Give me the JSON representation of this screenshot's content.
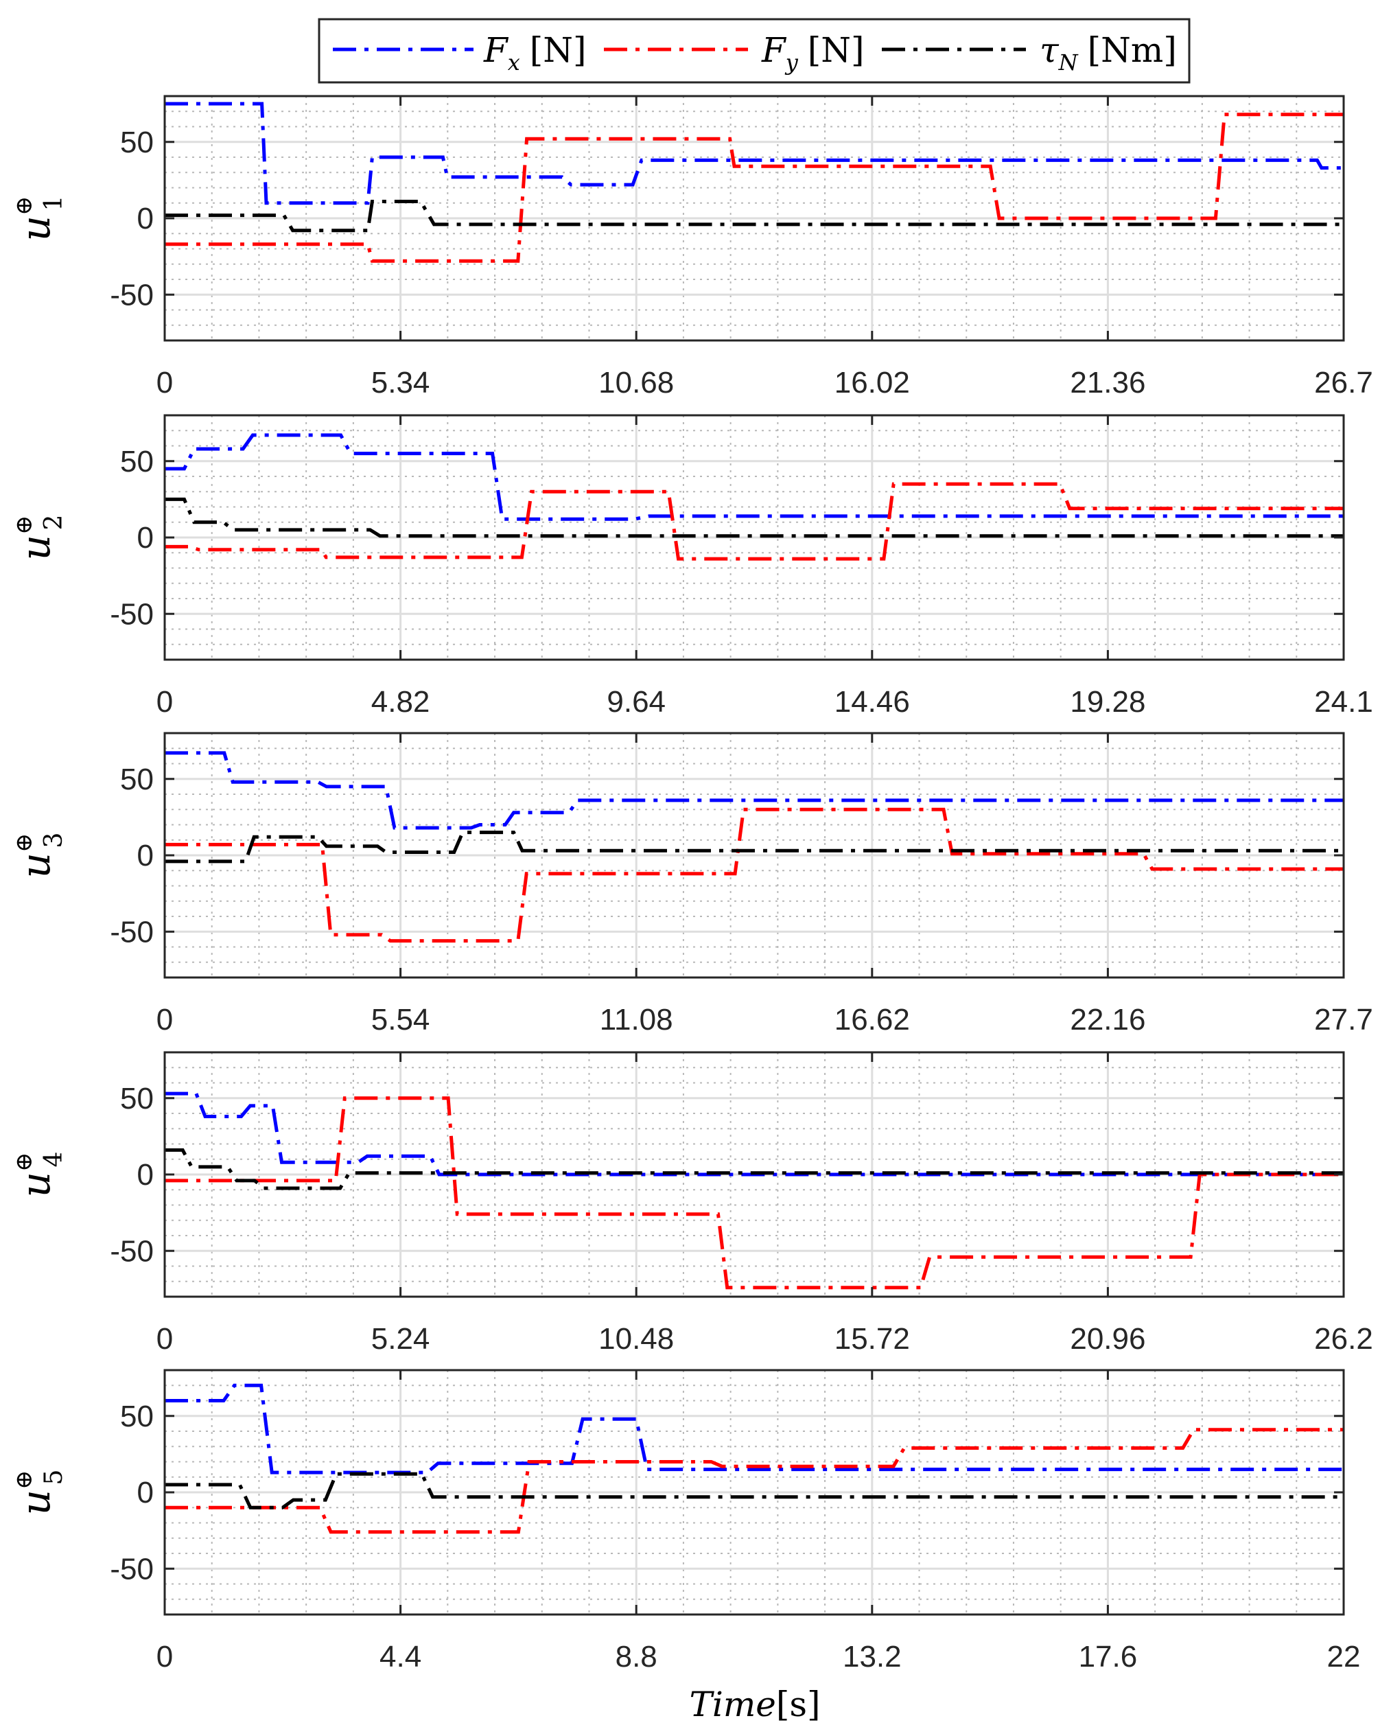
{
  "legend": {
    "entries": [
      {
        "key": "fx",
        "symbol": "F",
        "sub": "x",
        "unit": "[N]",
        "color": "#0000ff"
      },
      {
        "key": "fy",
        "symbol": "F",
        "sub": "y",
        "unit": "[N]",
        "color": "#ff0000"
      },
      {
        "key": "tau",
        "symbol": "τ",
        "sub": "N",
        "unit": "[Nm]",
        "color": "#000000"
      }
    ]
  },
  "xlabel": {
    "italic": "Time",
    "unit": "[s]"
  },
  "chart_data": [
    {
      "type": "line",
      "ylabel": {
        "main": "u",
        "sub": "1",
        "sup": "⊕"
      },
      "xlim": [
        0,
        26.7
      ],
      "ylim": [
        -80,
        80
      ],
      "xticks": [
        0,
        5.34,
        10.68,
        16.02,
        21.36,
        26.7
      ],
      "xticklabels": [
        "0",
        "5.34",
        "10.68",
        "16.02",
        "21.36",
        "26.7"
      ],
      "yticks": [
        50,
        0,
        -50
      ],
      "yticklabels": [
        "50",
        "0",
        "-50"
      ],
      "grid": true,
      "series": [
        {
          "key": "fx",
          "x": [
            0,
            2.2,
            2.3,
            4.6,
            4.7,
            6.3,
            6.4,
            9.0,
            9.2,
            10.6,
            10.8,
            26.1,
            26.2,
            26.7
          ],
          "y": [
            75,
            75,
            10,
            10,
            40,
            40,
            27,
            27,
            22,
            22,
            38,
            38,
            33,
            33
          ]
        },
        {
          "key": "fy",
          "x": [
            0,
            4.6,
            4.7,
            8.0,
            8.2,
            12.8,
            12.9,
            18.7,
            18.9,
            23.8,
            24.0,
            26.7
          ],
          "y": [
            -17,
            -17,
            -28,
            -28,
            52,
            52,
            34,
            34,
            0,
            0,
            68,
            68
          ]
        },
        {
          "key": "tau",
          "x": [
            0,
            2.7,
            2.9,
            4.6,
            4.7,
            5.8,
            6.1,
            26.7
          ],
          "y": [
            2,
            2,
            -8,
            -8,
            11,
            11,
            -4,
            -4
          ]
        }
      ]
    },
    {
      "type": "line",
      "ylabel": {
        "main": "u",
        "sub": "2",
        "sup": "⊕"
      },
      "xlim": [
        0,
        24.1
      ],
      "ylim": [
        -80,
        80
      ],
      "xticks": [
        0,
        4.82,
        9.64,
        14.46,
        19.28,
        24.1
      ],
      "xticklabels": [
        "0",
        "4.82",
        "9.64",
        "14.46",
        "19.28",
        "24.1"
      ],
      "yticks": [
        50,
        0,
        -50
      ],
      "yticklabels": [
        "50",
        "0",
        "-50"
      ],
      "grid": true,
      "series": [
        {
          "key": "fx",
          "x": [
            0,
            0.4,
            0.6,
            1.6,
            1.8,
            3.6,
            3.8,
            6.7,
            6.9,
            9.6,
            9.9,
            24.1
          ],
          "y": [
            45,
            45,
            58,
            58,
            67,
            67,
            55,
            55,
            12,
            12,
            14,
            14
          ]
        },
        {
          "key": "fy",
          "x": [
            0,
            0.5,
            0.7,
            3.2,
            3.3,
            7.3,
            7.5,
            10.3,
            10.5,
            14.7,
            14.9,
            18.3,
            18.5,
            24.1
          ],
          "y": [
            -6,
            -6,
            -8,
            -8,
            -13,
            -13,
            30,
            30,
            -14,
            -14,
            35,
            35,
            19,
            19
          ]
        },
        {
          "key": "tau",
          "x": [
            0,
            0.4,
            0.6,
            1.2,
            1.4,
            4.2,
            4.4,
            24.1
          ],
          "y": [
            25,
            25,
            10,
            10,
            5,
            5,
            1,
            1
          ]
        }
      ]
    },
    {
      "type": "line",
      "ylabel": {
        "main": "u",
        "sub": "3",
        "sup": "⊕"
      },
      "xlim": [
        0,
        27.7
      ],
      "ylim": [
        -80,
        80
      ],
      "xticks": [
        0,
        5.54,
        11.08,
        16.62,
        22.16,
        27.7
      ],
      "xticklabels": [
        "0",
        "5.54",
        "11.08",
        "16.62",
        "22.16",
        "27.7"
      ],
      "yticks": [
        50,
        0,
        -50
      ],
      "yticklabels": [
        "50",
        "0",
        "-50"
      ],
      "grid": true,
      "series": [
        {
          "key": "fx",
          "x": [
            0,
            1.4,
            1.6,
            3.6,
            3.8,
            5.2,
            5.4,
            7.2,
            7.4,
            8.0,
            8.2,
            9.5,
            9.7,
            27.7
          ],
          "y": [
            67,
            67,
            48,
            48,
            45,
            45,
            18,
            18,
            20,
            20,
            28,
            28,
            36,
            36
          ]
        },
        {
          "key": "fy",
          "x": [
            0,
            3.7,
            3.9,
            5.1,
            5.3,
            8.3,
            8.5,
            13.4,
            13.6,
            18.3,
            18.5,
            23.0,
            23.2,
            27.7
          ],
          "y": [
            7,
            7,
            -52,
            -52,
            -56,
            -56,
            -12,
            -12,
            30,
            30,
            1,
            1,
            -9,
            -9
          ]
        },
        {
          "key": "tau",
          "x": [
            0,
            1.9,
            2.1,
            3.6,
            3.8,
            5.0,
            5.2,
            6.8,
            7.0,
            8.2,
            8.4,
            27.7
          ],
          "y": [
            -4,
            -4,
            12,
            12,
            6,
            6,
            2,
            2,
            15,
            15,
            3,
            3
          ]
        }
      ]
    },
    {
      "type": "line",
      "ylabel": {
        "main": "u",
        "sub": "4",
        "sup": "⊕"
      },
      "xlim": [
        0,
        26.2
      ],
      "ylim": [
        -80,
        80
      ],
      "xticks": [
        0,
        5.24,
        10.48,
        15.72,
        20.96,
        26.2
      ],
      "xticklabels": [
        "0",
        "5.24",
        "10.48",
        "15.72",
        "20.96",
        "26.2"
      ],
      "yticks": [
        50,
        0,
        -50
      ],
      "yticklabels": [
        "50",
        "0",
        "-50"
      ],
      "grid": true,
      "series": [
        {
          "key": "fx",
          "x": [
            0,
            0.7,
            0.9,
            1.7,
            1.9,
            2.4,
            2.6,
            4.3,
            4.5,
            5.9,
            6.1,
            26.2
          ],
          "y": [
            53,
            53,
            38,
            38,
            45,
            45,
            8,
            8,
            12,
            12,
            0,
            0
          ]
        },
        {
          "key": "fy",
          "x": [
            0,
            3.8,
            4.0,
            6.3,
            6.5,
            12.3,
            12.5,
            16.8,
            17.0,
            22.8,
            23.0,
            26.2
          ],
          "y": [
            -4,
            -4,
            50,
            50,
            -26,
            -26,
            -74,
            -74,
            -54,
            -54,
            0,
            0
          ]
        },
        {
          "key": "tau",
          "x": [
            0,
            0.4,
            0.6,
            1.4,
            1.6,
            2.0,
            2.2,
            3.9,
            4.1,
            26.2
          ],
          "y": [
            16,
            16,
            5,
            5,
            -4,
            -4,
            -9,
            -9,
            1,
            1
          ]
        }
      ]
    },
    {
      "type": "line",
      "ylabel": {
        "main": "u",
        "sub": "5",
        "sup": "⊕"
      },
      "xlim": [
        0,
        22
      ],
      "ylim": [
        -80,
        80
      ],
      "xticks": [
        0,
        4.4,
        8.8,
        13.2,
        17.6,
        22
      ],
      "xticklabels": [
        "0",
        "4.4",
        "8.8",
        "13.2",
        "17.6",
        "22"
      ],
      "yticks": [
        50,
        0,
        -50
      ],
      "yticklabels": [
        "50",
        "0",
        "-50"
      ],
      "grid": true,
      "series": [
        {
          "key": "fx",
          "x": [
            0,
            1.1,
            1.3,
            1.8,
            2.0,
            4.9,
            5.1,
            7.6,
            7.8,
            8.8,
            9.0,
            22
          ],
          "y": [
            60,
            60,
            70,
            70,
            13,
            13,
            19,
            19,
            48,
            48,
            15,
            15
          ]
        },
        {
          "key": "fy",
          "x": [
            0,
            2.9,
            3.1,
            6.6,
            6.8,
            10.2,
            10.4,
            13.6,
            13.8,
            19.0,
            19.2,
            22
          ],
          "y": [
            -10,
            -10,
            -26,
            -26,
            20,
            20,
            17,
            17,
            29,
            29,
            41,
            41
          ]
        },
        {
          "key": "tau",
          "x": [
            0,
            1.4,
            1.6,
            2.2,
            2.4,
            3.0,
            3.2,
            4.8,
            5.0,
            22
          ],
          "y": [
            5,
            5,
            -10,
            -10,
            -5,
            -5,
            12,
            12,
            -3,
            -3
          ]
        }
      ]
    }
  ]
}
